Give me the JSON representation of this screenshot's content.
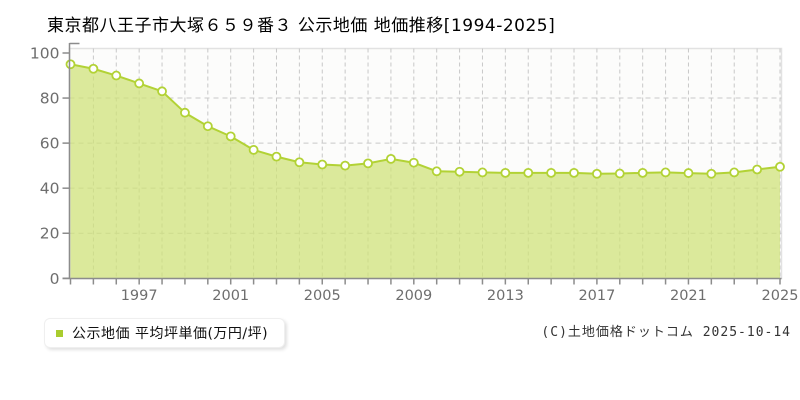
{
  "page": {
    "title": "東京都八王子市大塚６５９番３ 公示地価 地価推移[1994-2025]",
    "copyright": "(C)土地価格ドットコム 2025-10-14"
  },
  "legend": {
    "label": "公示地価 平均坪単価(万円/坪)",
    "marker_color": "#a9cc2e",
    "position": "bottom-left"
  },
  "chart_data": {
    "type": "area",
    "title": "東京都八王子市大塚６５９番３ 公示地価 地価推移[1994-2025]",
    "series_name": "公示地価 平均坪単価(万円/坪)",
    "unit": "万円/坪",
    "x": [
      1994,
      1995,
      1996,
      1997,
      1998,
      1999,
      2000,
      2001,
      2002,
      2003,
      2004,
      2005,
      2006,
      2007,
      2008,
      2009,
      2010,
      2011,
      2012,
      2013,
      2014,
      2015,
      2016,
      2017,
      2018,
      2019,
      2020,
      2021,
      2022,
      2023,
      2024,
      2025
    ],
    "values": [
      95.0,
      93.0,
      90.0,
      86.5,
      83.0,
      73.5,
      67.5,
      63.0,
      57.0,
      54.0,
      51.5,
      50.5,
      50.0,
      51.0,
      53.0,
      51.3,
      47.5,
      47.3,
      47.0,
      46.8,
      46.8,
      46.8,
      46.8,
      46.4,
      46.5,
      46.8,
      47.0,
      46.7,
      46.4,
      47.0,
      48.3,
      49.5
    ],
    "ylim": [
      0,
      100
    ],
    "yticks": [
      0,
      20,
      40,
      60,
      80,
      100
    ],
    "xtick_labels": [
      1997,
      2001,
      2005,
      2009,
      2013,
      2017,
      2021,
      2025
    ],
    "grid": true,
    "marker": "circle",
    "colors": {
      "line": "#b2d235",
      "fill": "rgba(206,226,118,0.72)",
      "marker_fill": "#ffffff",
      "grid": "#c8c8c8",
      "axis": "#8c8c8c",
      "tick_text": "#6e6e6e",
      "plot_bg": "#fcfcfb",
      "plot_border": "#e2e2e2"
    }
  }
}
